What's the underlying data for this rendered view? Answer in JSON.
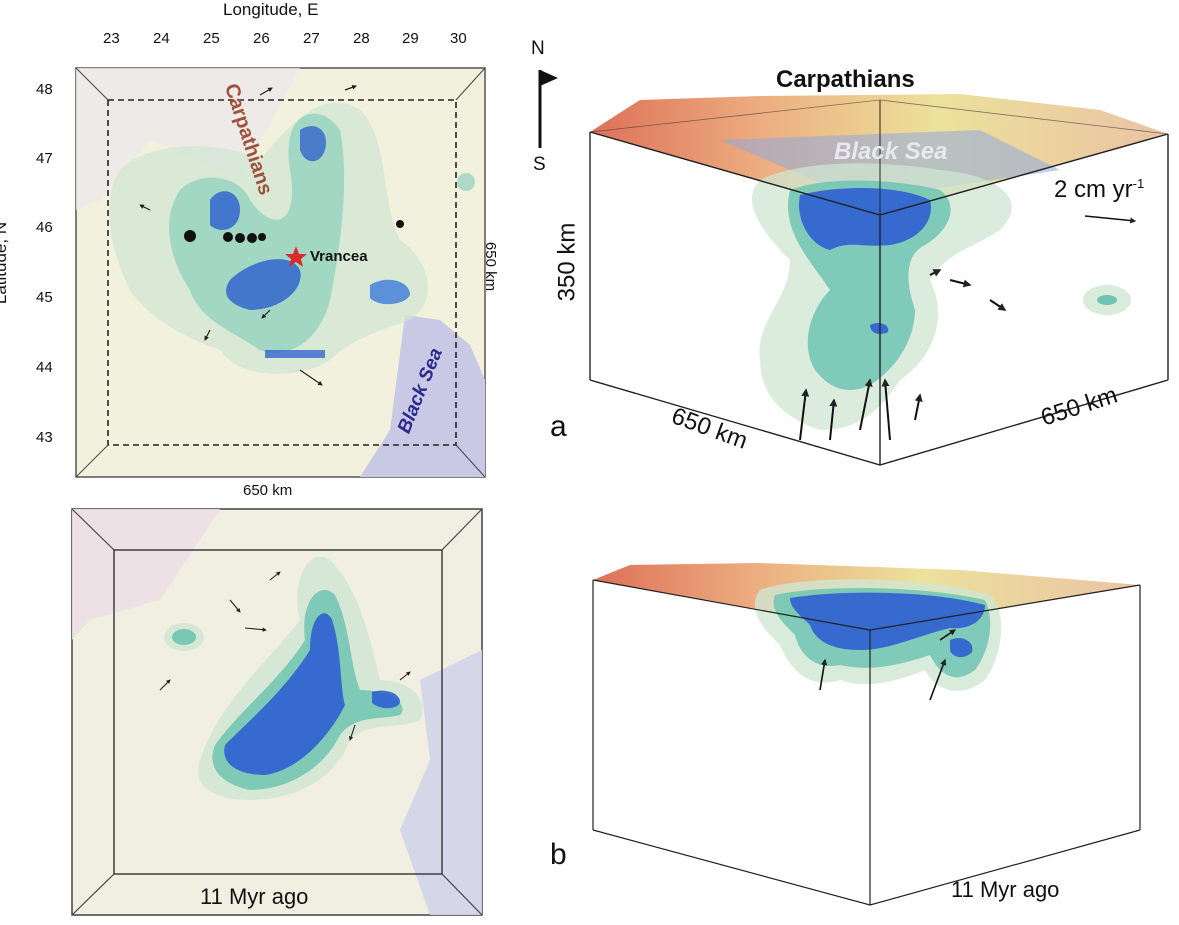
{
  "top_map": {
    "x_axis_title": "Longitude, E",
    "y_axis_title": "Latitude, N",
    "lon_ticks": [
      "23",
      "24",
      "25",
      "26",
      "27",
      "28",
      "29",
      "30"
    ],
    "lat_ticks": [
      "48",
      "47",
      "46",
      "45",
      "44",
      "43"
    ],
    "width_label": "650 km",
    "height_label": "650 km",
    "region_label": "Carpathians",
    "site_label": "Vrancea",
    "sea_label": "Black Sea"
  },
  "bottom_map": {
    "time_label": "11 Myr ago"
  },
  "block_a": {
    "title": "Carpathians",
    "sea_label": "Black Sea",
    "north_label": "N",
    "south_label": "S",
    "velocity_scale": "2 cm yr",
    "velocity_exponent": "-1",
    "depth_label": "350 km",
    "front_width_label": "650 km",
    "side_width_label": "650 km",
    "panel_letter": "a"
  },
  "block_b": {
    "panel_letter": "b",
    "time_label": "11 Myr ago"
  },
  "colors": {
    "core_blue": "#2f5fd0",
    "teal": "#5fbfae",
    "pale_green": "#cfe6d2",
    "sea": "#c9c9e6",
    "surface_red": "#d8573a",
    "surface_yellow": "#e8dc8a"
  }
}
